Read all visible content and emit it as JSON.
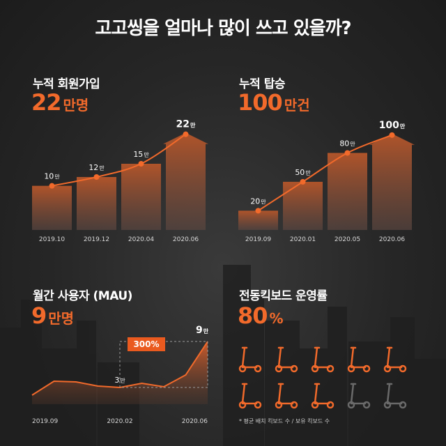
{
  "title": "고고씽을 얼마나 많이 쓰고 있을까?",
  "colors": {
    "accent": "#f26a2b",
    "bar": "#8a4a2c",
    "muted": "#6a6a6a"
  },
  "panels": {
    "members": {
      "title": "누적 회원가입",
      "big_value": "22",
      "big_unit": "만명"
    },
    "rides": {
      "title": "누적 탑승",
      "big_value": "100",
      "big_unit": "만건"
    },
    "mau": {
      "title": "월간 사용자 (MAU)",
      "big_value": "9",
      "big_unit": "만명",
      "badge": "300%"
    },
    "operation": {
      "title": "전동킥보드 운영률",
      "big_value": "80",
      "big_unit": "%",
      "footnote": "* 평균 배치 킥보드 수 / 보유 킥보드 수"
    }
  },
  "chart_data": [
    {
      "type": "bar",
      "title": "누적 회원가입",
      "categories": [
        "2019.10",
        "2019.12",
        "2020.04",
        "2020.06"
      ],
      "values": [
        10,
        12,
        15,
        22
      ],
      "value_labels": [
        "10",
        "12",
        "15",
        "22"
      ],
      "value_unit": "만",
      "ylim": [
        0,
        24
      ]
    },
    {
      "type": "bar",
      "title": "누적 탑승",
      "categories": [
        "2019.09",
        "2020.01",
        "2020.05",
        "2020.06"
      ],
      "values": [
        20,
        50,
        80,
        100
      ],
      "value_labels": [
        "20",
        "50",
        "80",
        "100"
      ],
      "value_unit": "만",
      "ylim": [
        0,
        110
      ]
    },
    {
      "type": "area",
      "title": "월간 사용자 (MAU)",
      "x_tick_labels": [
        "2019.09",
        "2020.02",
        "2020.06"
      ],
      "values": [
        1.3,
        3.3,
        3.2,
        2.6,
        2.4,
        3.0,
        2.5,
        4.2,
        9.0
      ],
      "annotations": [
        {
          "label": "3",
          "unit": "만"
        },
        {
          "label": "9",
          "unit": "만"
        }
      ],
      "ylim": [
        0,
        10
      ]
    },
    {
      "type": "pictogram",
      "title": "전동킥보드 운영률",
      "total": 10,
      "active": 8,
      "value": 80
    }
  ]
}
